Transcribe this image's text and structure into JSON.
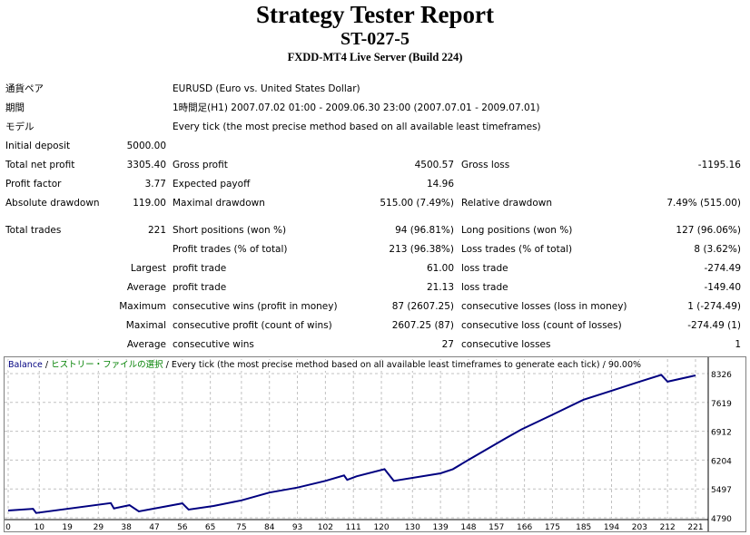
{
  "header": {
    "title": "Strategy Tester Report",
    "expert": "ST-027-5",
    "server": "FXDD-MT4 Live Server (Build 224)"
  },
  "info": [
    {
      "label": "通貨ペア",
      "value": "EURUSD (Euro vs. United States Dollar)"
    },
    {
      "label": "期間",
      "value": "1時間足(H1) 2007.07.02 01:00 - 2009.06.30 23:00 (2007.07.01 - 2009.07.01)"
    },
    {
      "label": "モデル",
      "value": "Every tick (the most precise method based on all available least timeframes)"
    }
  ],
  "stats": [
    {
      "l1": "Initial deposit",
      "v1": "5000.00",
      "l2": "",
      "v2": "",
      "l3": "",
      "v3": ""
    },
    {
      "l1": "Total net profit",
      "v1": "3305.40",
      "l2": "Gross profit",
      "v2": "4500.57",
      "l3": "Gross loss",
      "v3": "-1195.16"
    },
    {
      "l1": "Profit factor",
      "v1": "3.77",
      "l2": "Expected payoff",
      "v2": "14.96",
      "l3": "",
      "v3": ""
    },
    {
      "l1": "Absolute drawdown",
      "v1": "119.00",
      "l2": "Maximal drawdown",
      "v2": "515.00 (7.49%)",
      "l3": "Relative drawdown",
      "v3": "7.49% (515.00)"
    }
  ],
  "trades": [
    {
      "l1": "Total trades",
      "v1": "221",
      "l2": "Short positions (won %)",
      "v2": "94 (96.81%)",
      "l3": "Long positions (won %)",
      "v3": "127 (96.06%)"
    },
    {
      "l1": "",
      "v1": "",
      "l2": "Profit trades (% of total)",
      "v2": "213 (96.38%)",
      "l3": "Loss trades (% of total)",
      "v3": "8 (3.62%)"
    },
    {
      "l1": "",
      "v1": "Largest",
      "l2": "profit trade",
      "v2": "61.00",
      "l3": "loss trade",
      "v3": "-274.49"
    },
    {
      "l1": "",
      "v1": "Average",
      "l2": "profit trade",
      "v2": "21.13",
      "l3": "loss trade",
      "v3": "-149.40"
    },
    {
      "l1": "",
      "v1": "Maximum",
      "l2": "consecutive wins (profit in money)",
      "v2": "87 (2607.25)",
      "l3": "consecutive losses (loss in money)",
      "v3": "1 (-274.49)"
    },
    {
      "l1": "",
      "v1": "Maximal",
      "l2": "consecutive profit (count of wins)",
      "v2": "2607.25 (87)",
      "l3": "consecutive loss (count of losses)",
      "v3": "-274.49 (1)"
    },
    {
      "l1": "",
      "v1": "Average",
      "l2": "consecutive wins",
      "v2": "27",
      "l3": "consecutive losses",
      "v3": "1"
    }
  ],
  "chart_data": {
    "type": "line",
    "legend": {
      "series": "Balance",
      "source": "ヒストリー・ファイルの選択",
      "model": "Every tick (the most precise method based on all available least timeframes to generate each tick)",
      "quality": "90.00%",
      "sep": " / "
    },
    "xticks": [
      "0",
      "10",
      "19",
      "29",
      "38",
      "47",
      "56",
      "65",
      "75",
      "84",
      "93",
      "102",
      "111",
      "120",
      "130",
      "139",
      "148",
      "157",
      "166",
      "175",
      "185",
      "194",
      "203",
      "212",
      "221"
    ],
    "yticks": [
      "8326",
      "7619",
      "6912",
      "6204",
      "5497",
      "4790"
    ],
    "xlim": [
      0,
      221
    ],
    "ylim": [
      4790,
      8326
    ],
    "colors": {
      "line": "#000080",
      "grid": "#c0c0c0"
    },
    "series": [
      {
        "name": "Balance",
        "points": [
          [
            0,
            4967
          ],
          [
            8,
            5011
          ],
          [
            9,
            4907
          ],
          [
            33,
            5150
          ],
          [
            34,
            5018
          ],
          [
            39,
            5100
          ],
          [
            42,
            4945
          ],
          [
            56,
            5143
          ],
          [
            58,
            4990
          ],
          [
            66,
            5080
          ],
          [
            75,
            5217
          ],
          [
            84,
            5408
          ],
          [
            93,
            5530
          ],
          [
            102,
            5696
          ],
          [
            108,
            5829
          ],
          [
            109,
            5719
          ],
          [
            112,
            5807
          ],
          [
            121,
            5983
          ],
          [
            124,
            5696
          ],
          [
            139,
            5880
          ],
          [
            143,
            5983
          ],
          [
            148,
            6211
          ],
          [
            160,
            6741
          ],
          [
            165,
            6955
          ],
          [
            175,
            7316
          ],
          [
            185,
            7685
          ],
          [
            194,
            7906
          ],
          [
            203,
            8127
          ],
          [
            210,
            8294
          ],
          [
            212,
            8127
          ],
          [
            221,
            8282
          ]
        ]
      }
    ]
  }
}
